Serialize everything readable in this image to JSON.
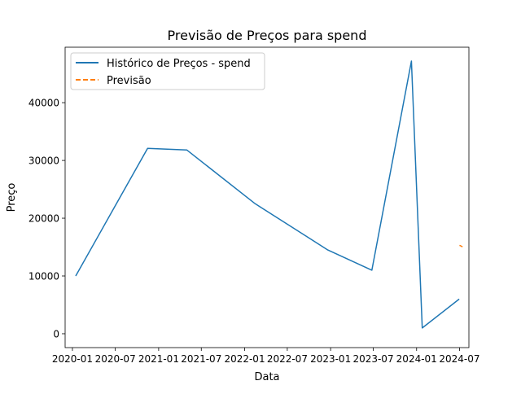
{
  "chart_data": {
    "type": "line",
    "title": "Previsão de Preços para spend",
    "xlabel": "Data",
    "ylabel": "Preço",
    "x_type": "date",
    "xlim": [
      "2019-12-01",
      "2024-08-10"
    ],
    "ylim": [
      -2400,
      49600
    ],
    "x_ticks": [
      {
        "value": "2020-01-01",
        "label": "2020-01"
      },
      {
        "value": "2020-07-01",
        "label": "2020-07"
      },
      {
        "value": "2021-01-01",
        "label": "2021-01"
      },
      {
        "value": "2021-07-01",
        "label": "2021-07"
      },
      {
        "value": "2022-01-01",
        "label": "2022-01"
      },
      {
        "value": "2022-07-01",
        "label": "2022-07"
      },
      {
        "value": "2023-01-01",
        "label": "2023-01"
      },
      {
        "value": "2023-07-01",
        "label": "2023-07"
      },
      {
        "value": "2024-01-01",
        "label": "2024-01"
      },
      {
        "value": "2024-07-01",
        "label": "2024-07"
      }
    ],
    "y_ticks": [
      {
        "value": 0,
        "label": "0"
      },
      {
        "value": 10000,
        "label": "10000"
      },
      {
        "value": 20000,
        "label": "20000"
      },
      {
        "value": 30000,
        "label": "30000"
      },
      {
        "value": 40000,
        "label": "40000"
      }
    ],
    "grid": false,
    "legend": "top-left",
    "series": [
      {
        "name": "Histórico de Preços - spend",
        "color": "#1f77b4",
        "style": "solid",
        "points": [
          {
            "x": "2020-01-15",
            "y": 10000
          },
          {
            "x": "2020-11-15",
            "y": 32100
          },
          {
            "x": "2021-05-01",
            "y": 31800
          },
          {
            "x": "2022-02-15",
            "y": 22500
          },
          {
            "x": "2022-12-20",
            "y": 14500
          },
          {
            "x": "2023-06-25",
            "y": 11000
          },
          {
            "x": "2023-12-10",
            "y": 47200
          },
          {
            "x": "2024-01-25",
            "y": 1000
          },
          {
            "x": "2024-06-30",
            "y": 6000
          }
        ]
      },
      {
        "name": "Previsão",
        "color": "#ff7f0e",
        "style": "dashed",
        "points": [
          {
            "x": "2024-07-01",
            "y": 15300
          },
          {
            "x": "2024-07-05",
            "y": 15250
          },
          {
            "x": "2024-07-09",
            "y": 15150
          },
          {
            "x": "2024-07-14",
            "y": 15050
          }
        ]
      }
    ]
  }
}
